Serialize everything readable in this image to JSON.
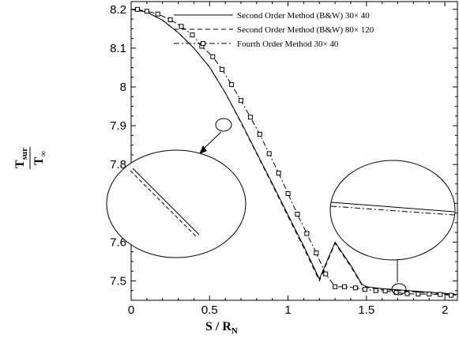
{
  "chart_data": {
    "type": "line",
    "xlabel": "S / R",
    "xlabel_sub": "N",
    "ylabel": "T",
    "ylabel_sub": "sur",
    "ylabel_denominator": "T",
    "ylabel_denominator_sub": "∞",
    "xlim": [
      0,
      2.08
    ],
    "ylim": [
      7.45,
      8.22
    ],
    "xticks": [
      0,
      0.5,
      1,
      1.5,
      2
    ],
    "xtick_labels": [
      "0",
      "0.5",
      "1",
      "1.5",
      "2"
    ],
    "yticks": [
      7.5,
      7.6,
      7.7,
      7.8,
      7.9,
      8,
      8.1,
      8.2
    ],
    "ytick_labels": [
      "7.5",
      "7.6",
      "7.7",
      "7.8",
      "7.9",
      "8",
      "8.1",
      "8.2"
    ],
    "legend_position": "top-right",
    "series": [
      {
        "name": "Second Order Method (B&W)  30× 40",
        "style": "solid",
        "x": [
          0,
          0.1,
          0.2,
          0.3,
          0.4,
          0.5,
          0.6,
          0.7,
          0.8,
          0.9,
          1.0,
          1.1,
          1.2,
          1.3,
          1.4,
          1.47,
          1.5,
          1.6,
          1.7,
          1.8,
          1.9,
          2.0,
          2.08
        ],
        "y": [
          8.2,
          8.193,
          8.172,
          8.14,
          8.1,
          8.051,
          7.985,
          7.91,
          7.83,
          7.751,
          7.67,
          7.59,
          7.505,
          7.6,
          7.54,
          7.492,
          7.485,
          7.48,
          7.477,
          7.474,
          7.471,
          7.468,
          7.465
        ]
      },
      {
        "name": "Second Order Method (B&W)  80× 120",
        "style": "dashed",
        "x": [
          0,
          0.1,
          0.2,
          0.3,
          0.4,
          0.5,
          0.6,
          0.7,
          0.8,
          0.9,
          1.0,
          1.1,
          1.2,
          1.3,
          1.4,
          1.47,
          1.5,
          1.6,
          1.7,
          1.8,
          1.9,
          2.0,
          2.08
        ],
        "y": [
          8.2,
          8.193,
          8.172,
          8.14,
          8.1,
          8.051,
          7.985,
          7.908,
          7.828,
          7.748,
          7.666,
          7.586,
          7.5,
          7.597,
          7.537,
          7.49,
          7.483,
          7.478,
          7.475,
          7.472,
          7.469,
          7.466,
          7.463
        ]
      },
      {
        "name": "Fourth Order Method   30× 40",
        "style": "dashdot",
        "markers": "square",
        "x": [
          0.04,
          0.1,
          0.17,
          0.25,
          0.32,
          0.39,
          0.45,
          0.52,
          0.58,
          0.64,
          0.7,
          0.76,
          0.82,
          0.88,
          0.94,
          1.0,
          1.06,
          1.12,
          1.18,
          1.24,
          1.3,
          1.36,
          1.43,
          1.49,
          1.56,
          1.62,
          1.69,
          1.76,
          1.83,
          1.9,
          1.97,
          2.04
        ],
        "y": [
          8.2,
          8.195,
          8.188,
          8.173,
          8.156,
          8.134,
          8.105,
          8.078,
          8.045,
          8.006,
          7.965,
          7.922,
          7.878,
          7.828,
          7.778,
          7.725,
          7.672,
          7.622,
          7.572,
          7.518,
          7.485,
          7.485,
          7.482,
          7.478,
          7.475,
          7.474,
          7.47,
          7.467,
          7.466,
          7.466,
          7.465,
          7.463
        ]
      }
    ]
  }
}
